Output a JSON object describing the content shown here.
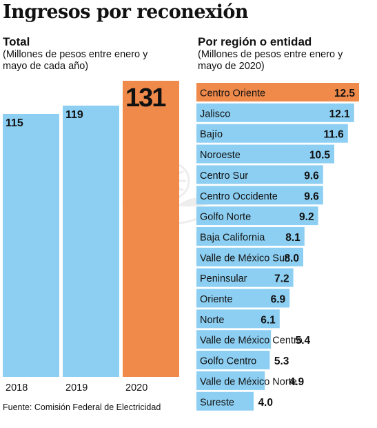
{
  "header": {
    "title": "Ingresos por reconexión",
    "source": "Fuente: Comisión Federal de Electricidad"
  },
  "colors": {
    "bar": "#8dcff2",
    "highlight": "#f08a4b",
    "text": "#111111"
  },
  "chart_data": [
    {
      "type": "bar",
      "title": "Total",
      "subtitle": "(Millones de pesos entre enero y mayo de cada año)",
      "categories": [
        "2018",
        "2019",
        "2020"
      ],
      "values": [
        115,
        119,
        131
      ],
      "value_labels": [
        "115",
        "119",
        "131"
      ],
      "highlight_index": 2,
      "orientation": "vertical",
      "grid": false
    },
    {
      "type": "bar",
      "title": "Por región o entidad",
      "subtitle": "(Millones de pesos entre enero y mayo de 2020)",
      "orientation": "horizontal",
      "categories": [
        "Centro Oriente",
        "Jalisco",
        "Bajío",
        "Noroeste",
        "Centro Sur",
        "Centro Occidente",
        "Golfo Norte",
        "Baja California",
        "Valle de México Sur",
        "Peninsular",
        "Oriente",
        "Norte",
        "Valle de México Centro",
        "Golfo Centro",
        "Valle de México Norte",
        "Sureste"
      ],
      "values": [
        12.5,
        12.1,
        11.6,
        10.5,
        9.6,
        9.6,
        9.2,
        8.1,
        8.0,
        7.2,
        6.9,
        6.1,
        5.4,
        5.3,
        4.9,
        4.0
      ],
      "value_labels": [
        "12.5",
        "12.1",
        "11.6",
        "10.5",
        "9.6",
        "9.6",
        "9.2",
        "8.1",
        "8.0",
        "7.2",
        "6.9",
        "6.1",
        "5.4",
        "5.3",
        "4.9",
        "4.0"
      ],
      "highlight_index": 0,
      "grid": false
    }
  ]
}
